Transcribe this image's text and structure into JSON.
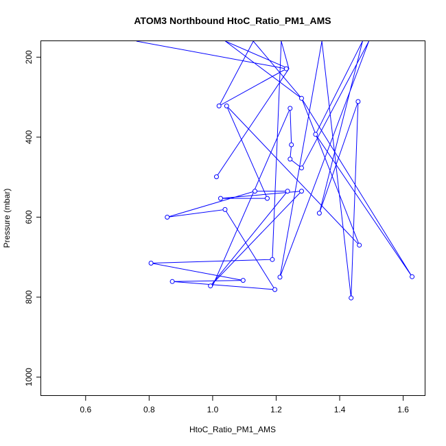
{
  "chart_data": {
    "type": "line",
    "title": "ATOM3 Northbound HtoC_Ratio_PM1_AMS",
    "xlabel": "HtoC_Ratio_PM1_AMS",
    "ylabel": "Pressure (mbar)",
    "xlim": [
      0.46,
      1.67
    ],
    "ylim": [
      1047,
      160
    ],
    "y_reversed": true,
    "xticks": [
      0.6,
      0.8,
      1.0,
      1.2,
      1.4,
      1.6
    ],
    "xtick_labels": [
      "0.6",
      "0.8",
      "1.0",
      "1.2",
      "1.4",
      "1.6"
    ],
    "yticks": [
      200,
      400,
      600,
      800,
      1000
    ],
    "ytick_labels": [
      "200",
      "400",
      "600",
      "800",
      "1000"
    ],
    "grid": false,
    "series": [
      {
        "color": "#0000ff",
        "points": [
          {
            "x": 0.76,
            "y": 160,
            "m": false
          },
          {
            "x": 1.232,
            "y": 229,
            "m": true
          },
          {
            "x": 1.02,
            "y": 322,
            "m": true
          },
          {
            "x": 1.128,
            "y": 160,
            "m": false
          },
          {
            "x": 1.28,
            "y": 303,
            "m": true
          },
          {
            "x": 1.462,
            "y": 670,
            "m": true
          },
          {
            "x": 1.044,
            "y": 322,
            "m": true
          },
          {
            "x": 1.172,
            "y": 553,
            "m": true
          },
          {
            "x": 1.025,
            "y": 553,
            "m": true
          },
          {
            "x": 1.28,
            "y": 535,
            "m": true
          },
          {
            "x": 0.993,
            "y": 772,
            "m": true
          },
          {
            "x": 1.236,
            "y": 535,
            "m": true
          },
          {
            "x": 1.133,
            "y": 535,
            "m": true
          },
          {
            "x": 0.857,
            "y": 600,
            "m": true
          },
          {
            "x": 0.857,
            "y": 600,
            "m": false
          },
          {
            "x": 0.857,
            "y": 600,
            "m": false
          },
          {
            "x": 1.039,
            "y": 581,
            "m": true
          },
          {
            "x": 1.196,
            "y": 781,
            "m": true
          },
          {
            "x": 0.873,
            "y": 761,
            "m": true
          },
          {
            "x": 1.096,
            "y": 758,
            "m": true
          },
          {
            "x": 0.806,
            "y": 715,
            "m": true
          },
          {
            "x": 1.188,
            "y": 706,
            "m": true
          },
          {
            "x": 1.216,
            "y": 160,
            "m": false
          },
          {
            "x": 1.24,
            "y": 229,
            "m": false
          },
          {
            "x": 1.012,
            "y": 499,
            "m": true
          },
          {
            "x": 1.24,
            "y": 229,
            "m": false
          },
          {
            "x": 1.24,
            "y": 229,
            "m": false
          },
          {
            "x": 1.04,
            "y": 160,
            "m": false
          },
          {
            "x": 1.28,
            "y": 303,
            "m": false
          },
          {
            "x": 1.628,
            "y": 749,
            "m": true
          },
          {
            "x": 1.324,
            "y": 393,
            "m": true
          },
          {
            "x": 1.472,
            "y": 160,
            "m": false
          },
          {
            "x": 1.336,
            "y": 590,
            "m": true
          },
          {
            "x": 1.458,
            "y": 311,
            "m": true
          },
          {
            "x": 1.436,
            "y": 802,
            "m": true
          },
          {
            "x": 1.344,
            "y": 160,
            "m": false
          },
          {
            "x": 1.212,
            "y": 750,
            "m": true
          },
          {
            "x": 1.492,
            "y": 160,
            "m": false
          },
          {
            "x": 1.28,
            "y": 477,
            "m": true
          },
          {
            "x": 1.244,
            "y": 455,
            "m": true
          },
          {
            "x": 1.248,
            "y": 419,
            "m": true
          },
          {
            "x": 1.244,
            "y": 328,
            "m": true
          },
          {
            "x": 1.0,
            "y": 772,
            "m": false
          }
        ]
      }
    ]
  }
}
